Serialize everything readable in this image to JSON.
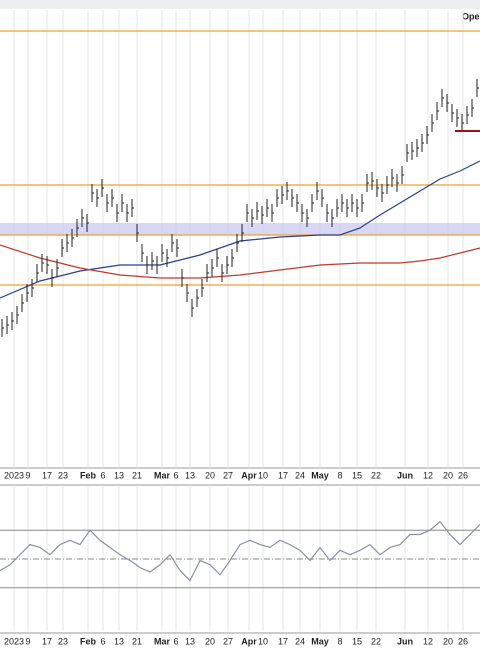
{
  "chart_data": {
    "type": "ohlc",
    "corner_text": "Ope",
    "xlim": [
      0,
      480
    ],
    "xticks": [
      {
        "value": 14,
        "label": "2023"
      },
      {
        "value": 28,
        "label": "9"
      },
      {
        "value": 47,
        "label": "17"
      },
      {
        "value": 63,
        "label": "23"
      },
      {
        "value": 88,
        "label": "Feb"
      },
      {
        "value": 103,
        "label": "6"
      },
      {
        "value": 119,
        "label": "13"
      },
      {
        "value": 137,
        "label": "21"
      },
      {
        "value": 162,
        "label": "Mar"
      },
      {
        "value": 176,
        "label": "6"
      },
      {
        "value": 190,
        "label": "13"
      },
      {
        "value": 210,
        "label": "20"
      },
      {
        "value": 228,
        "label": "27"
      },
      {
        "value": 249,
        "label": "Apr"
      },
      {
        "value": 263,
        "label": "10"
      },
      {
        "value": 283,
        "label": "17"
      },
      {
        "value": 300,
        "label": "24"
      },
      {
        "value": 320,
        "label": "May"
      },
      {
        "value": 340,
        "label": "8"
      },
      {
        "value": 357,
        "label": "15"
      },
      {
        "value": 376,
        "label": "22"
      },
      {
        "value": 405,
        "label": "Jun"
      },
      {
        "value": 428,
        "label": "12"
      },
      {
        "value": 448,
        "label": "20"
      },
      {
        "value": 463,
        "label": "26"
      }
    ],
    "ylim": [
      0,
      455
    ],
    "x": [
      2,
      7,
      12,
      17,
      22,
      27,
      32,
      37,
      42,
      47,
      52,
      57,
      62,
      67,
      72,
      77,
      82,
      87,
      92,
      97,
      102,
      107,
      112,
      117,
      122,
      127,
      132,
      137,
      142,
      147,
      152,
      157,
      162,
      167,
      172,
      177,
      182,
      187,
      192,
      197,
      202,
      207,
      212,
      217,
      222,
      227,
      232,
      237,
      242,
      247,
      252,
      257,
      262,
      267,
      272,
      277,
      282,
      287,
      292,
      297,
      302,
      307,
      312,
      317,
      322,
      327,
      332,
      337,
      342,
      347,
      352,
      357,
      362,
      367,
      372,
      377,
      382,
      387,
      392,
      397,
      402,
      407,
      412,
      417,
      422,
      427,
      432,
      437,
      442,
      447,
      452,
      457,
      462,
      467,
      472,
      477
    ],
    "high": [
      149,
      152,
      156,
      162,
      174,
      184,
      189,
      204,
      214,
      212,
      199,
      209,
      229,
      234,
      239,
      249,
      259,
      254,
      284,
      279,
      289,
      274,
      279,
      264,
      274,
      264,
      269,
      244,
      224,
      212,
      216,
      212,
      224,
      219,
      234,
      229,
      199,
      184,
      169,
      179,
      189,
      204,
      209,
      219,
      204,
      212,
      219,
      234,
      244,
      264,
      259,
      266,
      262,
      269,
      264,
      279,
      282,
      286,
      279,
      274,
      264,
      259,
      274,
      286,
      279,
      264,
      259,
      269,
      274,
      269,
      274,
      269,
      274,
      294,
      296,
      289,
      284,
      292,
      299,
      294,
      302,
      324,
      326,
      329,
      334,
      342,
      354,
      366,
      379,
      374,
      364,
      359,
      354,
      362,
      369,
      389
    ],
    "low": [
      131,
      134,
      138,
      144,
      156,
      166,
      171,
      186,
      196,
      194,
      181,
      191,
      211,
      216,
      221,
      231,
      241,
      236,
      266,
      261,
      271,
      256,
      261,
      246,
      256,
      246,
      251,
      226,
      206,
      194,
      198,
      194,
      206,
      201,
      216,
      211,
      181,
      166,
      151,
      161,
      171,
      186,
      191,
      201,
      186,
      194,
      201,
      216,
      226,
      246,
      241,
      248,
      244,
      251,
      246,
      261,
      264,
      268,
      261,
      256,
      246,
      241,
      256,
      268,
      261,
      246,
      241,
      251,
      256,
      251,
      256,
      251,
      256,
      276,
      278,
      271,
      266,
      274,
      281,
      276,
      284,
      306,
      308,
      311,
      316,
      324,
      336,
      348,
      361,
      356,
      346,
      341,
      336,
      344,
      351,
      371
    ],
    "bar_color": "#222222",
    "moving_averages": [
      {
        "color": "#2c3e8f",
        "x": [
          0,
          40,
          80,
          120,
          160,
          200,
          240,
          280,
          320,
          340,
          360,
          380,
          400,
          420,
          440,
          460,
          480
        ],
        "values": [
          170,
          187,
          197,
          203,
          203,
          213,
          227,
          231,
          233,
          233,
          240,
          253,
          265,
          277,
          289,
          297,
          307
        ]
      },
      {
        "color": "#c0392b",
        "x": [
          0,
          40,
          80,
          120,
          160,
          200,
          240,
          280,
          320,
          360,
          400,
          420,
          440,
          460,
          480
        ],
        "values": [
          223,
          210,
          200,
          193,
          190,
          190,
          193,
          198,
          203,
          205,
          205,
          207,
          210,
          215,
          220
        ]
      }
    ],
    "levels": {
      "color": "#f0a030",
      "values": [
        437,
        283,
        233,
        183
      ]
    },
    "band": {
      "color": "#c8c8f0",
      "values": [
        233,
        245
      ]
    },
    "support_line": {
      "color": "#a01010",
      "value": 337,
      "x": [
        455,
        480
      ]
    },
    "rsi": {
      "type": "line",
      "color": "#8a8fa0",
      "ylim": [
        0,
        100
      ],
      "levels": [
        70,
        50,
        30
      ],
      "x": [
        0,
        10,
        20,
        30,
        40,
        50,
        60,
        70,
        80,
        90,
        100,
        110,
        120,
        130,
        140,
        150,
        160,
        170,
        180,
        190,
        200,
        210,
        220,
        230,
        240,
        250,
        260,
        270,
        280,
        290,
        300,
        310,
        320,
        330,
        340,
        350,
        360,
        370,
        380,
        390,
        400,
        410,
        420,
        430,
        440,
        450,
        460,
        470,
        480
      ],
      "values": [
        42,
        46,
        53,
        60,
        58,
        53,
        60,
        63,
        60,
        70,
        63,
        58,
        53,
        49,
        44,
        41,
        46,
        53,
        42,
        35,
        49,
        46,
        39,
        49,
        60,
        63,
        60,
        58,
        63,
        60,
        56,
        49,
        58,
        49,
        56,
        53,
        56,
        60,
        53,
        58,
        60,
        67,
        67,
        70,
        76,
        67,
        60,
        67,
        74
      ]
    }
  }
}
